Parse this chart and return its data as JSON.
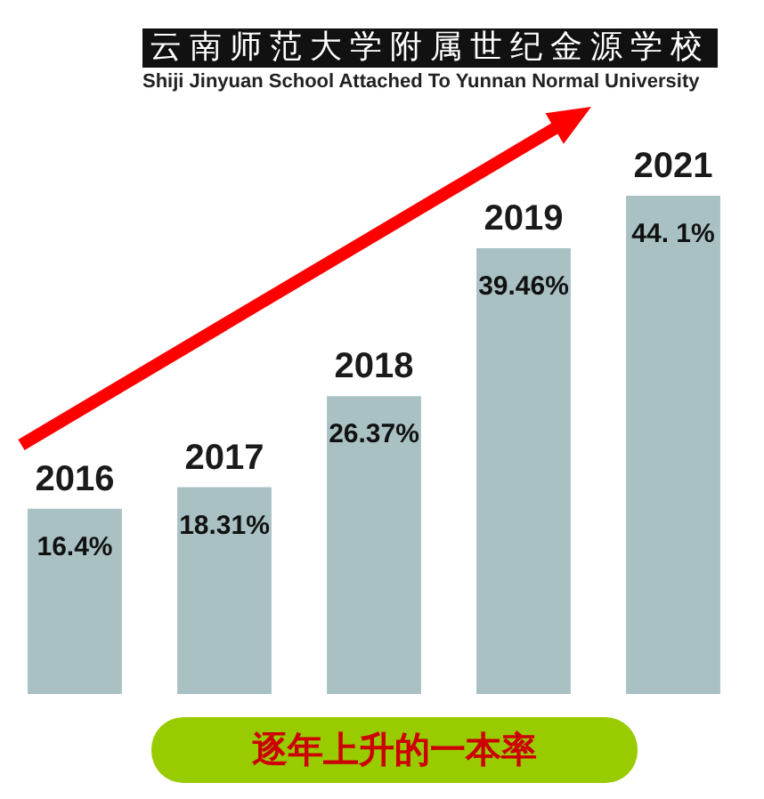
{
  "chart_data": {
    "type": "bar",
    "title": "逐年上升的一本率",
    "annotations": [
      "云南师范大学附属世纪金源学校",
      "Shiji Jinyuan School Attached To Yunnan Normal University"
    ],
    "categories": [
      "2016",
      "2017",
      "2018",
      "2019",
      "2021"
    ],
    "values": [
      16.4,
      18.31,
      26.37,
      39.46,
      44.1
    ],
    "value_labels": [
      "16.4%",
      "18.31%",
      "26.37%",
      "39.46%",
      "44. 1%"
    ],
    "color": "#a9c1c3",
    "tick_labels": "x"
  }
}
